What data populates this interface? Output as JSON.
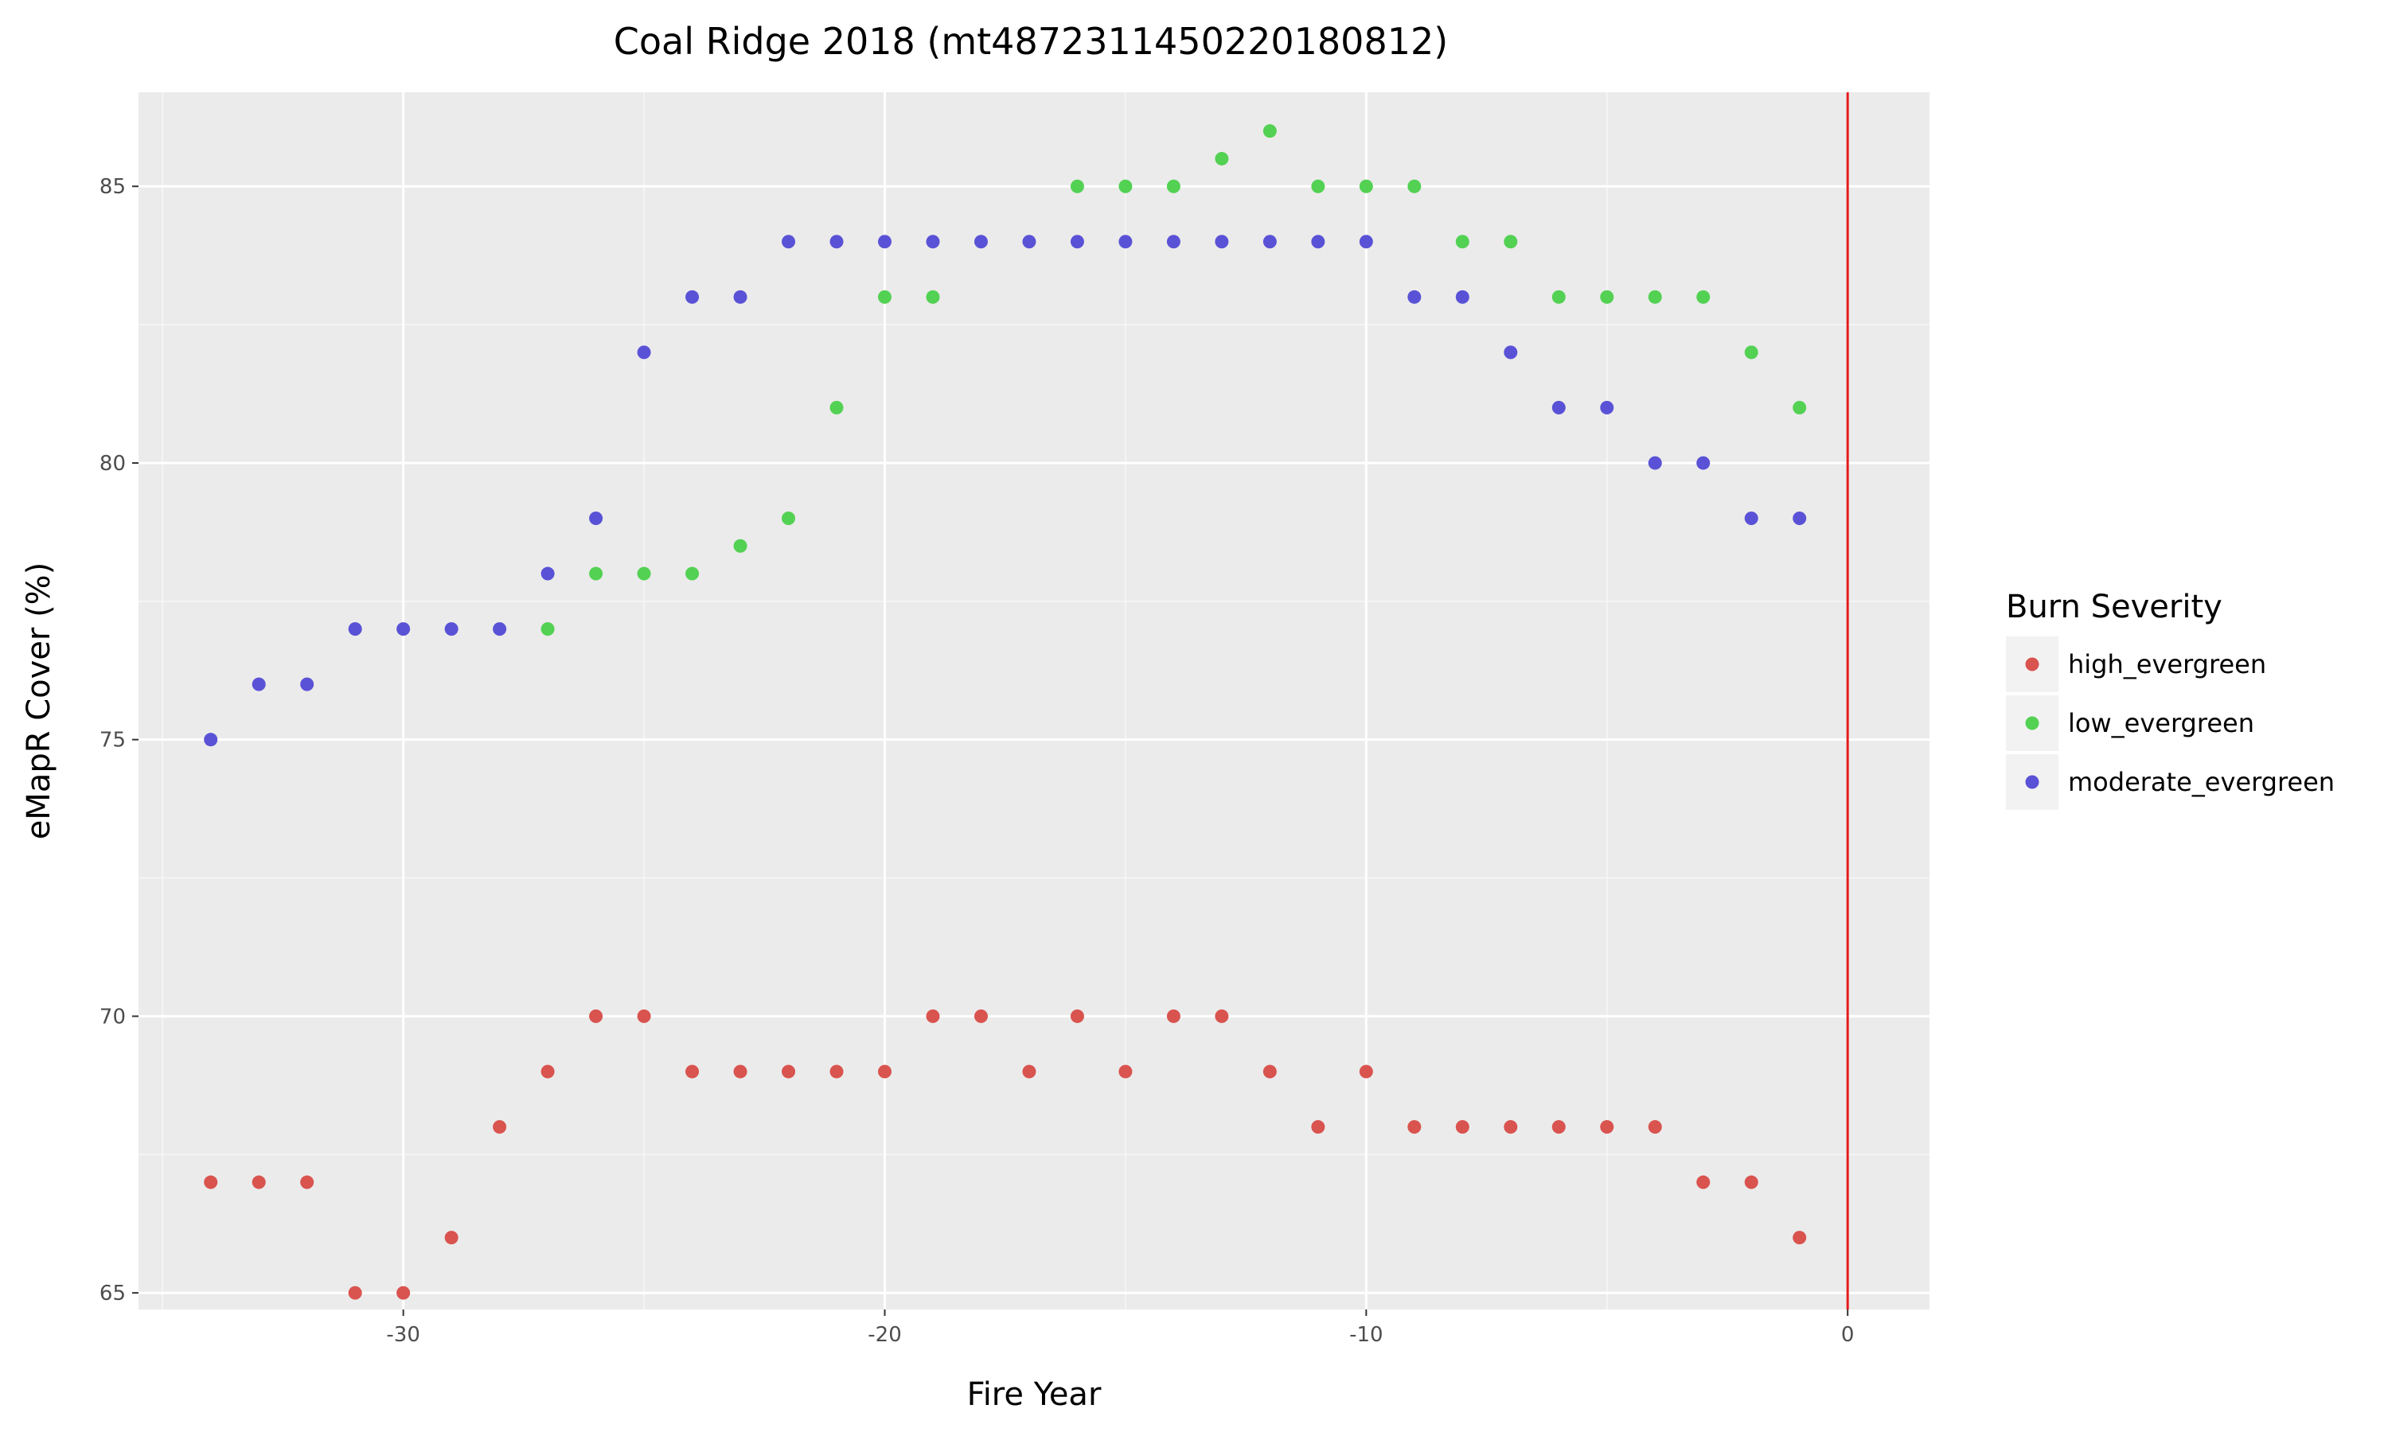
{
  "chart_data": {
    "type": "scatter",
    "title": "Coal Ridge 2018 (mt48723114502201808​12)",
    "xlabel": "Fire Year",
    "ylabel": "eMapR Cover (%)",
    "xlim": [
      -35.5,
      1.7
    ],
    "ylim": [
      64.7,
      86.7
    ],
    "x_ticks": [
      -30,
      -20,
      -10,
      0
    ],
    "y_ticks": [
      65,
      70,
      75,
      80,
      85
    ],
    "grid": true,
    "vline": {
      "x": 0,
      "color": "#e41a1c"
    },
    "legend": {
      "title": "Burn Severity",
      "position": "right"
    },
    "series": [
      {
        "name": "high_evergreen",
        "color": "#d9534f",
        "x": [
          -34,
          -33,
          -32,
          -31,
          -30,
          -29,
          -28,
          -27,
          -26,
          -25,
          -24,
          -23,
          -22,
          -21,
          -20,
          -19,
          -18,
          -17,
          -16,
          -15,
          -14,
          -13,
          -12,
          -11,
          -10,
          -9,
          -8,
          -7,
          -6,
          -5,
          -4,
          -3,
          -2,
          -1
        ],
        "y": [
          67,
          67,
          67,
          65,
          65,
          66,
          68,
          69,
          70,
          70,
          69,
          69,
          69,
          69,
          69,
          70,
          70,
          69,
          70,
          69,
          70,
          70,
          69,
          68,
          69,
          68,
          68,
          68,
          68,
          68,
          68,
          67,
          67,
          66
        ]
      },
      {
        "name": "low_evergreen",
        "color": "#53d153",
        "x": [
          -27,
          -26,
          -25,
          -24,
          -23,
          -22,
          -21,
          -20,
          -19,
          -16,
          -15,
          -14,
          -13,
          -12,
          -11,
          -10,
          -9,
          -8,
          -7,
          -6,
          -5,
          -4,
          -3,
          -2,
          -1
        ],
        "y": [
          77,
          78,
          78,
          78,
          78.5,
          79,
          81,
          83,
          83,
          85,
          85,
          85,
          85.5,
          86,
          85,
          85,
          85,
          84,
          84,
          83,
          83,
          83,
          83,
          82,
          81
        ]
      },
      {
        "name": "moderate_evergreen",
        "color": "#5a52d6",
        "x": [
          -34,
          -33,
          -32,
          -31,
          -30,
          -29,
          -28,
          -27,
          -26,
          -25,
          -24,
          -23,
          -22,
          -21,
          -20,
          -19,
          -18,
          -17,
          -16,
          -15,
          -14,
          -13,
          -12,
          -11,
          -10,
          -9,
          -8,
          -7,
          -6,
          -5,
          -4,
          -3,
          -2,
          -1
        ],
        "y": [
          75,
          76,
          76,
          77,
          77,
          77,
          77,
          78,
          79,
          82,
          83,
          83,
          84,
          84,
          84,
          84,
          84,
          84,
          84,
          84,
          84,
          84,
          84,
          84,
          84,
          83,
          83,
          82,
          81,
          81,
          80,
          80,
          79,
          79
        ]
      }
    ]
  }
}
